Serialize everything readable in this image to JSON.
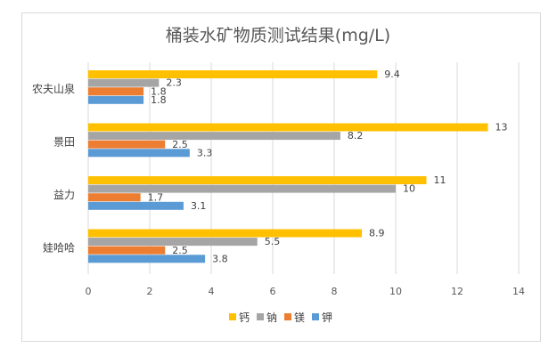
{
  "chart_data": {
    "type": "bar",
    "orientation": "horizontal",
    "title": "桶装水矿物质测试结果(mg/L)",
    "categories": [
      "农夫山泉",
      "景田",
      "益力",
      "娃哈哈"
    ],
    "series": [
      {
        "name": "钙",
        "color": "#FFC000",
        "values": [
          9.4,
          13,
          11,
          8.9
        ]
      },
      {
        "name": "钠",
        "color": "#A5A5A5",
        "values": [
          2.3,
          8.2,
          10,
          5.5
        ]
      },
      {
        "name": "镁",
        "color": "#ED7D31",
        "values": [
          1.8,
          2.5,
          1.7,
          2.5
        ]
      },
      {
        "name": "钾",
        "color": "#5B9BD5",
        "values": [
          1.8,
          3.3,
          3.1,
          3.8
        ]
      }
    ],
    "xlim": [
      0,
      14
    ],
    "xticks": [
      0,
      2,
      4,
      6,
      8,
      10,
      12,
      14
    ],
    "grid": true,
    "legend_position": "bottom",
    "xlabel": "",
    "ylabel": ""
  }
}
